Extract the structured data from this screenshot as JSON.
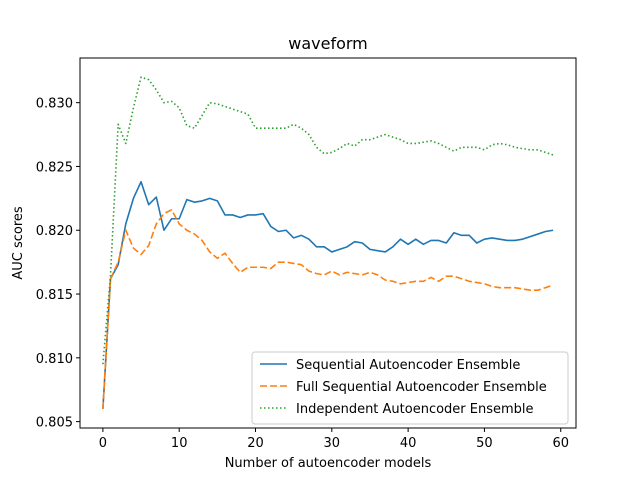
{
  "chart_data": {
    "type": "line",
    "title": "waveform",
    "xlabel": "Number of autoencoder models",
    "ylabel": "AUC scores",
    "xlim": [
      -3,
      62
    ],
    "ylim": [
      0.8045,
      0.8335
    ],
    "xticks": [
      0,
      10,
      20,
      30,
      40,
      50,
      60
    ],
    "yticks": [
      0.805,
      0.81,
      0.815,
      0.82,
      0.825,
      0.83
    ],
    "ytick_labels": [
      "0.805",
      "0.810",
      "0.815",
      "0.820",
      "0.825",
      "0.830"
    ],
    "grid": false,
    "legend_position": "lower-right",
    "x": [
      0,
      1,
      2,
      3,
      4,
      5,
      6,
      7,
      8,
      9,
      10,
      11,
      12,
      13,
      14,
      15,
      16,
      17,
      18,
      19,
      20,
      21,
      22,
      23,
      24,
      25,
      26,
      27,
      28,
      29,
      30,
      31,
      32,
      33,
      34,
      35,
      36,
      37,
      38,
      39,
      40,
      41,
      42,
      43,
      44,
      45,
      46,
      47,
      48,
      49,
      50,
      51,
      52,
      53,
      54,
      55,
      56,
      57,
      58,
      59
    ],
    "series": [
      {
        "name": "Sequential Autoencoder Ensemble",
        "color": "#1f77b4",
        "style": "solid",
        "values": [
          0.806,
          0.8162,
          0.8173,
          0.8205,
          0.8225,
          0.8238,
          0.822,
          0.8226,
          0.82,
          0.8209,
          0.8209,
          0.8224,
          0.8222,
          0.8223,
          0.8225,
          0.8223,
          0.8212,
          0.8212,
          0.821,
          0.8212,
          0.8212,
          0.8213,
          0.8203,
          0.8199,
          0.82,
          0.8194,
          0.8196,
          0.8193,
          0.8187,
          0.8187,
          0.8183,
          0.8185,
          0.8187,
          0.8191,
          0.819,
          0.8185,
          0.8184,
          0.8183,
          0.8187,
          0.8193,
          0.8189,
          0.8193,
          0.8189,
          0.8192,
          0.8192,
          0.819,
          0.8198,
          0.8196,
          0.8196,
          0.819,
          0.8193,
          0.8194,
          0.8193,
          0.8192,
          0.8192,
          0.8193,
          0.8195,
          0.8197,
          0.8199,
          0.82
        ]
      },
      {
        "name": "Full Sequential Autoencoder Ensemble",
        "color": "#ff7f0e",
        "style": "dashed",
        "values": [
          0.806,
          0.8162,
          0.8175,
          0.82,
          0.8186,
          0.8181,
          0.8188,
          0.8205,
          0.8213,
          0.8216,
          0.8205,
          0.82,
          0.8197,
          0.8192,
          0.8183,
          0.8178,
          0.8182,
          0.8174,
          0.8167,
          0.8171,
          0.8171,
          0.8171,
          0.817,
          0.8175,
          0.8175,
          0.8174,
          0.8173,
          0.8168,
          0.8166,
          0.8165,
          0.8168,
          0.8165,
          0.8167,
          0.8166,
          0.8165,
          0.8167,
          0.8165,
          0.8161,
          0.816,
          0.8158,
          0.8159,
          0.816,
          0.816,
          0.8163,
          0.816,
          0.8164,
          0.8164,
          0.8162,
          0.816,
          0.8159,
          0.8158,
          0.8156,
          0.8155,
          0.8155,
          0.8155,
          0.8154,
          0.8153,
          0.8153,
          0.8155,
          0.8157
        ]
      },
      {
        "name": "Independent Autoencoder Ensemble",
        "color": "#2ca02c",
        "style": "dotted",
        "values": [
          0.8095,
          0.8165,
          0.8283,
          0.8268,
          0.8296,
          0.832,
          0.8318,
          0.831,
          0.83,
          0.8301,
          0.8296,
          0.8282,
          0.828,
          0.829,
          0.83,
          0.8299,
          0.8297,
          0.8295,
          0.8293,
          0.8291,
          0.828,
          0.828,
          0.828,
          0.828,
          0.828,
          0.8283,
          0.828,
          0.8275,
          0.8265,
          0.826,
          0.8261,
          0.8264,
          0.8268,
          0.8266,
          0.8271,
          0.8271,
          0.8273,
          0.8275,
          0.8273,
          0.8271,
          0.8268,
          0.8268,
          0.8269,
          0.827,
          0.8268,
          0.8265,
          0.8262,
          0.8265,
          0.8265,
          0.8265,
          0.8263,
          0.8267,
          0.8268,
          0.8267,
          0.8265,
          0.8264,
          0.8263,
          0.8263,
          0.8261,
          0.8259
        ]
      }
    ]
  }
}
